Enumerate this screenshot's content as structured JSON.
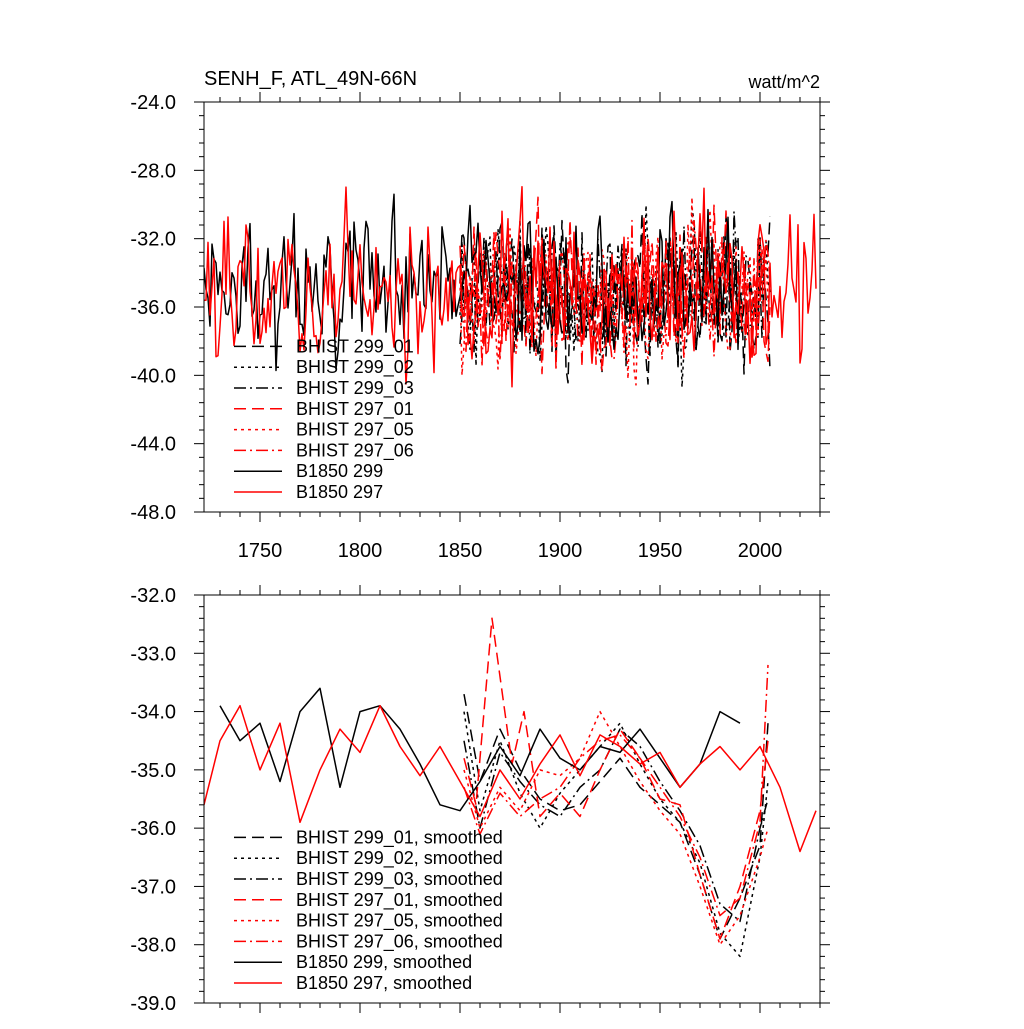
{
  "title": "SENH_F, ATL_49N-66N",
  "units": "watt/m^2",
  "colors": {
    "black": "#000000",
    "red": "#ff0000"
  },
  "chart_data": [
    {
      "type": "line",
      "title": "SENH_F, ATL_49N-66N",
      "units": "watt/m^2",
      "xlim": [
        1722,
        2030
      ],
      "ylim": [
        -48,
        -24
      ],
      "x_ticks": [
        1750,
        1800,
        1850,
        1900,
        1950,
        2000
      ],
      "y_ticks": [
        -24.0,
        -28.0,
        -32.0,
        -36.0,
        -40.0,
        -44.0,
        -48.0
      ],
      "y_tick_labels": [
        "-24.0",
        "-28.0",
        "-32.0",
        "-36.0",
        "-40.0",
        "-44.0",
        "-48.0"
      ],
      "legend_position": "bottom-left",
      "series": [
        {
          "name": "BHIST 299_01",
          "color": "#000000",
          "dash": "dashed",
          "x_start": 1850,
          "x_end": 2005,
          "mean": -35.2,
          "amplitude": 3.5,
          "seed": 11
        },
        {
          "name": "BHIST 299_02",
          "color": "#000000",
          "dash": "dotted",
          "x_start": 1850,
          "x_end": 2005,
          "mean": -35.3,
          "amplitude": 3.5,
          "seed": 12
        },
        {
          "name": "BHIST 299_03",
          "color": "#000000",
          "dash": "dashdot",
          "x_start": 1850,
          "x_end": 2005,
          "mean": -35.2,
          "amplitude": 3.5,
          "seed": 13
        },
        {
          "name": "BHIST 297_01",
          "color": "#ff0000",
          "dash": "dashed",
          "x_start": 1850,
          "x_end": 2005,
          "mean": -35.3,
          "amplitude": 3.5,
          "seed": 21
        },
        {
          "name": "BHIST 297_05",
          "color": "#ff0000",
          "dash": "dotted",
          "x_start": 1850,
          "x_end": 2005,
          "mean": -35.6,
          "amplitude": 3.6,
          "seed": 22
        },
        {
          "name": "BHIST 297_06",
          "color": "#ff0000",
          "dash": "dashdot",
          "x_start": 1850,
          "x_end": 2005,
          "mean": -35.3,
          "amplitude": 3.5,
          "seed": 23
        },
        {
          "name": "B1850 299",
          "color": "#000000",
          "dash": "solid",
          "x_start": 1722,
          "x_end": 1990,
          "mean": -34.8,
          "amplitude": 3.3,
          "seed": 31
        },
        {
          "name": "B1850 297",
          "color": "#ff0000",
          "dash": "solid",
          "x_start": 1722,
          "x_end": 2028,
          "mean": -35.0,
          "amplitude": 3.4,
          "seed": 32
        }
      ]
    },
    {
      "type": "line",
      "xlim": [
        1722,
        2030
      ],
      "ylim": [
        -39,
        -32
      ],
      "x_ticks": [
        1750,
        1800,
        1850,
        1900,
        1950,
        2000
      ],
      "y_ticks": [
        -32.0,
        -33.0,
        -34.0,
        -35.0,
        -36.0,
        -37.0,
        -38.0,
        -39.0
      ],
      "y_tick_labels": [
        "-32.0",
        "-33.0",
        "-34.0",
        "-35.0",
        "-36.0",
        "-37.0",
        "-38.0",
        "-39.0"
      ],
      "legend_position": "bottom-left",
      "series": [
        {
          "name": "BHIST 299_01, smoothed",
          "color": "#000000",
          "dash": "dashed",
          "x": [
            1852,
            1860,
            1870,
            1880,
            1890,
            1900,
            1910,
            1920,
            1930,
            1940,
            1950,
            1960,
            1970,
            1980,
            1990,
            2000,
            2004
          ],
          "y": [
            -33.7,
            -35.2,
            -34.3,
            -35.0,
            -35.5,
            -35.7,
            -35.6,
            -35.2,
            -34.8,
            -35.3,
            -35.6,
            -35.9,
            -36.8,
            -37.9,
            -37.2,
            -36.3,
            -34.2
          ]
        },
        {
          "name": "BHIST 299_02, smoothed",
          "color": "#000000",
          "dash": "dotted",
          "x": [
            1852,
            1860,
            1870,
            1880,
            1890,
            1900,
            1910,
            1920,
            1930,
            1940,
            1950,
            1960,
            1970,
            1980,
            1990,
            2000,
            2004
          ],
          "y": [
            -34.0,
            -35.7,
            -34.5,
            -35.4,
            -36.0,
            -35.4,
            -35.0,
            -34.6,
            -34.2,
            -34.9,
            -35.5,
            -35.9,
            -36.6,
            -37.8,
            -38.2,
            -36.5,
            -35.2
          ]
        },
        {
          "name": "BHIST 299_03, smoothed",
          "color": "#000000",
          "dash": "dashdot",
          "x": [
            1852,
            1860,
            1870,
            1880,
            1890,
            1900,
            1910,
            1920,
            1930,
            1940,
            1950,
            1960,
            1970,
            1980,
            1990,
            2000,
            2004
          ],
          "y": [
            -34.5,
            -36.0,
            -34.7,
            -35.2,
            -35.6,
            -35.8,
            -35.3,
            -35.0,
            -34.3,
            -34.6,
            -35.2,
            -35.7,
            -36.3,
            -37.3,
            -37.6,
            -36.0,
            -35.5
          ]
        },
        {
          "name": "BHIST 297_01, smoothed",
          "color": "#ff0000",
          "dash": "dashed",
          "x": [
            1852,
            1858,
            1863,
            1866,
            1870,
            1876,
            1882,
            1890,
            1900,
            1910,
            1920,
            1930,
            1940,
            1950,
            1960,
            1970,
            1980,
            1990,
            2000,
            2004
          ],
          "y": [
            -34.8,
            -35.6,
            -33.6,
            -32.4,
            -33.4,
            -34.9,
            -34.0,
            -35.8,
            -35.4,
            -35.8,
            -35.0,
            -34.3,
            -34.8,
            -35.5,
            -35.6,
            -36.8,
            -37.9,
            -37.0,
            -35.7,
            -34.5
          ]
        },
        {
          "name": "BHIST 297_05, smoothed",
          "color": "#ff0000",
          "dash": "dotted",
          "x": [
            1852,
            1860,
            1870,
            1880,
            1890,
            1900,
            1910,
            1920,
            1930,
            1940,
            1950,
            1960,
            1970,
            1980,
            1990,
            2000,
            2004
          ],
          "y": [
            -35.0,
            -36.0,
            -35.3,
            -35.7,
            -35.0,
            -35.1,
            -34.8,
            -34.0,
            -34.6,
            -35.2,
            -35.7,
            -36.1,
            -37.0,
            -38.0,
            -37.5,
            -36.5,
            -36.0
          ]
        },
        {
          "name": "BHIST 297_06, smoothed",
          "color": "#ff0000",
          "dash": "dashdot",
          "x": [
            1852,
            1860,
            1870,
            1880,
            1890,
            1900,
            1910,
            1920,
            1930,
            1940,
            1950,
            1960,
            1970,
            1980,
            1990,
            2000,
            2004
          ],
          "y": [
            -35.3,
            -36.1,
            -35.4,
            -35.8,
            -35.5,
            -35.3,
            -34.8,
            -34.5,
            -34.4,
            -34.8,
            -35.3,
            -35.8,
            -36.5,
            -37.5,
            -37.2,
            -35.9,
            -33.2
          ]
        },
        {
          "name": "B1850 299, smoothed",
          "color": "#000000",
          "dash": "solid",
          "x": [
            1730,
            1740,
            1750,
            1760,
            1770,
            1780,
            1790,
            1800,
            1810,
            1820,
            1830,
            1840,
            1850,
            1860,
            1870,
            1880,
            1890,
            1900,
            1910,
            1920,
            1930,
            1940,
            1950,
            1960,
            1970,
            1980,
            1990
          ],
          "y": [
            -33.9,
            -34.5,
            -34.2,
            -35.2,
            -34.0,
            -33.6,
            -35.3,
            -34.0,
            -33.9,
            -34.3,
            -34.9,
            -35.6,
            -35.7,
            -35.2,
            -34.6,
            -35.1,
            -34.3,
            -34.8,
            -35.0,
            -34.6,
            -34.7,
            -34.3,
            -34.8,
            -35.3,
            -34.9,
            -34.0,
            -34.2
          ]
        },
        {
          "name": "B1850 297, smoothed",
          "color": "#ff0000",
          "dash": "solid",
          "x": [
            1722,
            1730,
            1740,
            1750,
            1760,
            1770,
            1780,
            1790,
            1800,
            1810,
            1820,
            1830,
            1840,
            1850,
            1860,
            1870,
            1880,
            1890,
            1900,
            1910,
            1920,
            1930,
            1940,
            1950,
            1960,
            1970,
            1980,
            1990,
            2000,
            2010,
            2020,
            2028
          ],
          "y": [
            -35.6,
            -34.5,
            -33.9,
            -35.0,
            -34.2,
            -35.9,
            -35.0,
            -34.3,
            -34.7,
            -33.9,
            -34.6,
            -35.1,
            -34.6,
            -35.2,
            -35.8,
            -35.0,
            -35.5,
            -34.9,
            -34.4,
            -35.1,
            -34.4,
            -34.6,
            -34.9,
            -34.7,
            -35.3,
            -34.9,
            -34.6,
            -35.0,
            -34.6,
            -35.3,
            -36.4,
            -35.7
          ]
        }
      ]
    }
  ]
}
